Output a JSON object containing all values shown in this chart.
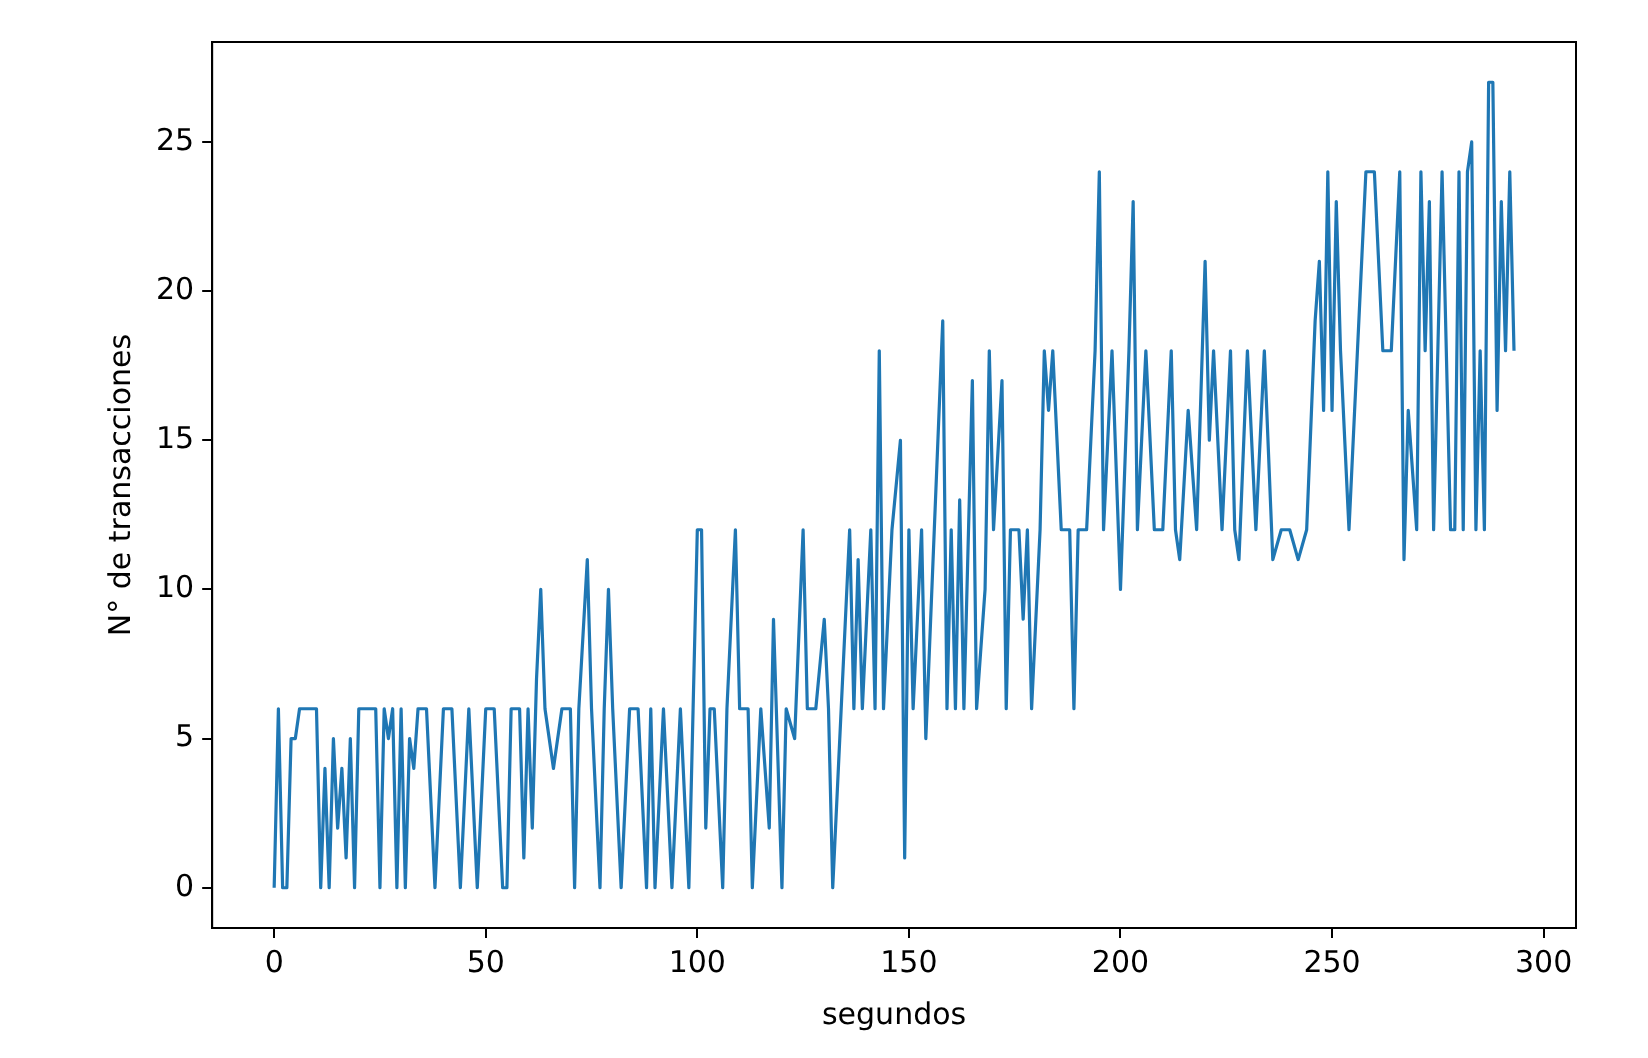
{
  "chart_data": {
    "type": "line",
    "xlabel": "segundos",
    "ylabel": "N° de transacciones",
    "grid": false,
    "legend": false,
    "marker": "none",
    "line_style": "solid",
    "xlim": [
      -14.65,
      307.65
    ],
    "ylim": [
      -1.35,
      28.35
    ],
    "xticks": [
      0,
      50,
      100,
      150,
      200,
      250,
      300
    ],
    "yticks": [
      0,
      5,
      10,
      15,
      20,
      25
    ],
    "series": [
      {
        "color": "#1f77b4",
        "x": [
          0,
          1,
          2,
          3,
          4,
          5,
          6,
          8,
          10,
          11,
          12,
          13,
          14,
          15,
          16,
          17,
          18,
          19,
          20,
          22,
          24,
          25,
          26,
          27,
          28,
          29,
          30,
          31,
          32,
          33,
          34,
          36,
          38,
          40,
          42,
          44,
          46,
          48,
          50,
          52,
          54,
          55,
          56,
          58,
          59,
          60,
          61,
          62,
          63,
          64,
          66,
          68,
          70,
          71,
          72,
          74,
          75,
          77,
          78,
          79,
          80,
          82,
          84,
          86,
          88,
          89,
          90,
          92,
          94,
          96,
          98,
          99,
          100,
          101,
          102,
          103,
          104,
          106,
          107,
          109,
          110,
          112,
          113,
          115,
          117,
          118,
          120,
          121,
          123,
          125,
          126,
          128,
          130,
          131,
          132,
          134,
          136,
          137,
          138,
          139,
          140,
          141,
          142,
          143,
          144,
          146,
          148,
          149,
          150,
          151,
          153,
          154,
          156,
          158,
          159,
          160,
          161,
          162,
          163,
          165,
          166,
          168,
          169,
          170,
          172,
          173,
          174,
          176,
          177,
          178,
          179,
          181,
          182,
          183,
          184,
          186,
          188,
          189,
          190,
          192,
          194,
          195,
          196,
          198,
          200,
          202,
          203,
          204,
          206,
          208,
          210,
          212,
          213,
          214,
          216,
          218,
          220,
          221,
          222,
          224,
          226,
          227,
          228,
          230,
          232,
          234,
          236,
          238,
          240,
          242,
          244,
          246,
          247,
          248,
          249,
          250,
          251,
          252,
          254,
          256,
          258,
          260,
          262,
          264,
          266,
          267,
          268,
          270,
          271,
          272,
          273,
          274,
          276,
          278,
          279,
          280,
          281,
          282,
          283,
          284,
          285,
          286,
          287,
          288,
          289,
          290,
          291,
          292,
          293
        ],
        "values": [
          0,
          6,
          0,
          0,
          5,
          5,
          6,
          6,
          6,
          0,
          4,
          0,
          5,
          2,
          4,
          1,
          5,
          0,
          6,
          6,
          6,
          0,
          6,
          5,
          6,
          0,
          6,
          0,
          5,
          4,
          6,
          6,
          0,
          6,
          6,
          0,
          6,
          0,
          6,
          6,
          0,
          0,
          6,
          6,
          1,
          6,
          2,
          7,
          10,
          6,
          4,
          6,
          6,
          0,
          6,
          11,
          6,
          0,
          6,
          10,
          6,
          0,
          6,
          6,
          0,
          6,
          0,
          6,
          0,
          6,
          0,
          6,
          12,
          12,
          2,
          6,
          6,
          0,
          6,
          12,
          6,
          6,
          0,
          6,
          2,
          9,
          0,
          6,
          5,
          12,
          6,
          6,
          9,
          6,
          0,
          6,
          12,
          6,
          11,
          6,
          9,
          12,
          6,
          18,
          6,
          12,
          15,
          1,
          12,
          6,
          12,
          5,
          12,
          19,
          6,
          12,
          6,
          13,
          6,
          17,
          6,
          10,
          18,
          12,
          17,
          6,
          12,
          12,
          9,
          12,
          6,
          12,
          18,
          16,
          18,
          12,
          12,
          6,
          12,
          12,
          18,
          24,
          12,
          18,
          10,
          18,
          23,
          12,
          18,
          12,
          12,
          18,
          12,
          11,
          16,
          12,
          21,
          15,
          18,
          12,
          18,
          12,
          11,
          18,
          12,
          18,
          11,
          12,
          12,
          11,
          12,
          19,
          21,
          16,
          24,
          16,
          23,
          18,
          12,
          18,
          24,
          24,
          18,
          18,
          24,
          11,
          16,
          12,
          24,
          18,
          23,
          12,
          24,
          12,
          12,
          24,
          12,
          24,
          25,
          12,
          18,
          12,
          27,
          27,
          16,
          23,
          18,
          24,
          18
        ]
      }
    ]
  }
}
